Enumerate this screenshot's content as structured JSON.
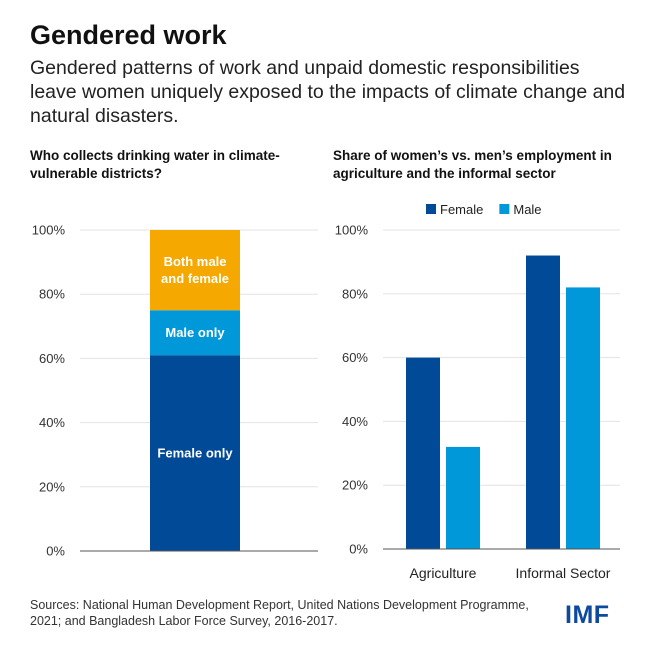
{
  "header": {
    "title": "Gendered work",
    "subtitle": "Gendered patterns of work and unpaid domestic responsibilities leave women uniquely exposed to the impacts of climate change and natural disasters."
  },
  "footer": {
    "source": "Sources: National Human Development Report, United Nations Development Programme, 2021; and Bangladesh Labor Force Survey, 2016-2017.",
    "logo": "IMF"
  },
  "colors": {
    "dark_blue": "#004a97",
    "light_blue": "#0098d9",
    "orange": "#f5a800",
    "axis": "#555555"
  },
  "chart_data": [
    {
      "type": "bar",
      "stacked": true,
      "title": "Who collects drinking water in climate-vulnerable districts?",
      "ylim": [
        0,
        100
      ],
      "yticks": [
        "0%",
        "20%",
        "40%",
        "60%",
        "80%",
        "100%"
      ],
      "segments": [
        {
          "name": "Female only",
          "value": 61,
          "color": "#004a97"
        },
        {
          "name": "Male only",
          "value": 14,
          "color": "#0098d9"
        },
        {
          "name": "Both male and female",
          "value": 25,
          "color": "#f5a800"
        }
      ]
    },
    {
      "type": "bar",
      "title": "Share of women’s vs. men’s employment in agriculture and the informal sector",
      "categories": [
        "Agriculture",
        "Informal Sector"
      ],
      "series": [
        {
          "name": "Female",
          "values": [
            60,
            92
          ],
          "color": "#004a97"
        },
        {
          "name": "Male",
          "values": [
            32,
            82
          ],
          "color": "#0098d9"
        }
      ],
      "ylim": [
        0,
        100
      ],
      "yticks": [
        "0%",
        "20%",
        "40%",
        "60%",
        "80%",
        "100%"
      ],
      "legend": "top"
    }
  ]
}
